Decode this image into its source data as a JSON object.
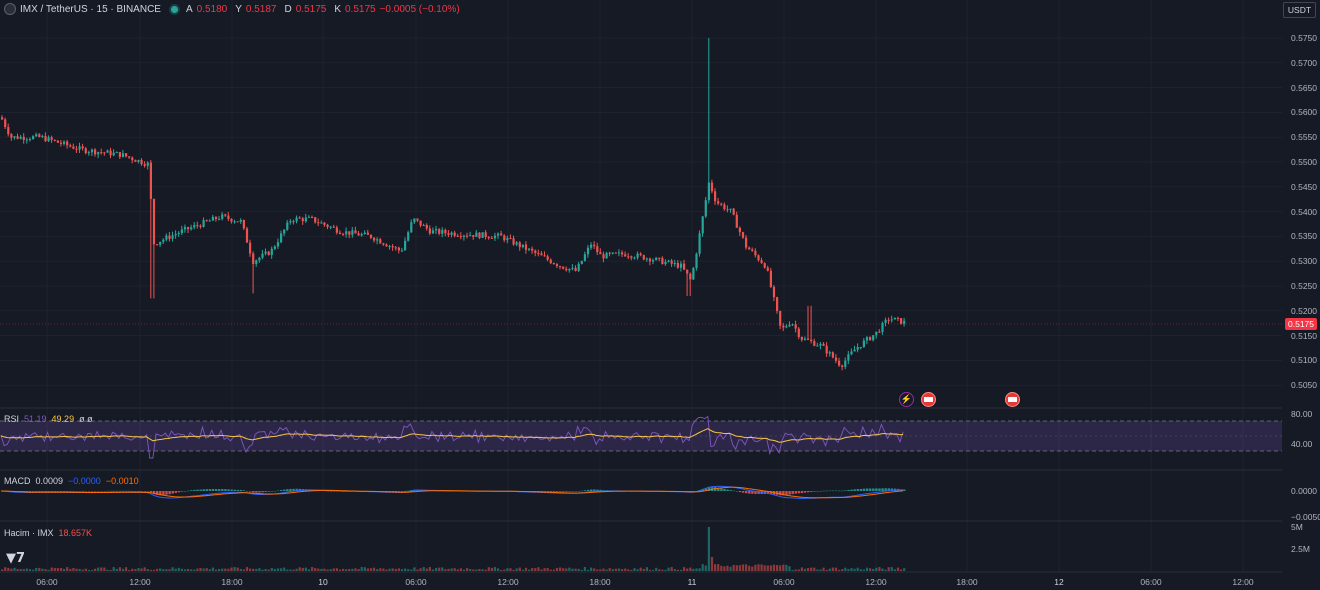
{
  "header": {
    "symbol": "IMX / TetherUS · 15 · BINANCE",
    "ohlc": [
      {
        "k": "A",
        "v": "0.5180"
      },
      {
        "k": "Y",
        "v": "0.5187"
      },
      {
        "k": "D",
        "v": "0.5175"
      },
      {
        "k": "K",
        "v": "0.5175"
      }
    ],
    "change": "−0.0005 (−0.10%)",
    "currency": "USDT"
  },
  "price_scale": {
    "labels": [
      "0.5750",
      "0.5700",
      "0.5650",
      "0.5600",
      "0.5550",
      "0.5500",
      "0.5450",
      "0.5400",
      "0.5350",
      "0.5300",
      "0.5250",
      "0.5200",
      "0.5150",
      "0.5100",
      "0.5050"
    ],
    "current_price": "0.5175"
  },
  "rsi": {
    "name": "RSI",
    "value1": "51.19",
    "value2": "49.29",
    "extra": "ø ø",
    "scale": [
      "80.00",
      "40.00"
    ]
  },
  "macd": {
    "name": "MACD",
    "hist": "0.0009",
    "macd": "−0.0000",
    "signal": "−0.0010",
    "scale": [
      "0.0000",
      "−0.0050"
    ]
  },
  "volume": {
    "name": "Hacim · IMX",
    "value": "18.657K",
    "scale": [
      "5M",
      "2.5M"
    ]
  },
  "time_axis": [
    "06:00",
    "12:00",
    "18:00",
    "10",
    "06:00",
    "12:00",
    "18:00",
    "11",
    "06:00",
    "12:00",
    "18:00",
    "12",
    "06:00",
    "12:00"
  ],
  "colors": {
    "bg": "#161a25",
    "up": "#26a69a",
    "down": "#ef5350",
    "rsi_band": "#7e57c2",
    "rsi_line": "#7e57c2",
    "rsi_ma": "#f7c548",
    "macd_line": "#2962ff",
    "signal_line": "#ff6d00"
  },
  "icons": [
    "lightning-icon",
    "flag-icon",
    "flag-icon",
    "tradingview-logo",
    "settings-icon"
  ]
}
